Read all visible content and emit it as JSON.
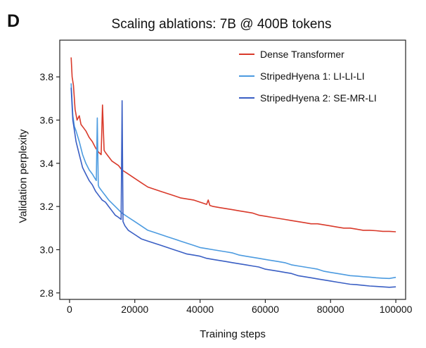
{
  "panel_label": "D",
  "chart_data": {
    "type": "line",
    "title": "Scaling ablations: 7B @ 400B tokens",
    "xlabel": "Training steps",
    "ylabel": "Validation perplexity",
    "xlim": [
      -3000,
      103000
    ],
    "ylim": [
      2.77,
      3.97
    ],
    "xticks": [
      0,
      20000,
      40000,
      60000,
      80000,
      100000
    ],
    "yticks": [
      2.8,
      3.0,
      3.2,
      3.4,
      3.6,
      3.8
    ],
    "xtick_labels": [
      "0",
      "20000",
      "40000",
      "60000",
      "80000",
      "100000"
    ],
    "ytick_labels": [
      "2.8",
      "3.0",
      "3.2",
      "3.4",
      "3.6",
      "3.8"
    ],
    "grid": false,
    "legend_position": "top-right",
    "series": [
      {
        "name": "Dense Transformer",
        "color": "#d93a2b",
        "x": [
          500,
          800,
          1200,
          1700,
          2300,
          3000,
          3500,
          4000,
          5000,
          6000,
          7000,
          8000,
          9000,
          9700,
          10100,
          10600,
          11000,
          12000,
          13000,
          14000,
          15000,
          16000,
          18000,
          20000,
          22000,
          24000,
          26000,
          28000,
          30000,
          32000,
          34000,
          36000,
          38000,
          40000,
          41000,
          42000,
          42500,
          43000,
          44000,
          46000,
          48000,
          50000,
          52000,
          54000,
          56000,
          58000,
          60000,
          62000,
          64000,
          66000,
          68000,
          70000,
          72000,
          74000,
          76000,
          78000,
          80000,
          82000,
          84000,
          86000,
          88000,
          90000,
          92000,
          94000,
          96000,
          98000,
          100000
        ],
        "y": [
          3.89,
          3.8,
          3.76,
          3.65,
          3.6,
          3.62,
          3.58,
          3.57,
          3.55,
          3.52,
          3.5,
          3.47,
          3.45,
          3.44,
          3.67,
          3.46,
          3.45,
          3.43,
          3.41,
          3.4,
          3.39,
          3.37,
          3.35,
          3.33,
          3.31,
          3.29,
          3.28,
          3.27,
          3.26,
          3.25,
          3.24,
          3.235,
          3.23,
          3.22,
          3.215,
          3.21,
          3.23,
          3.205,
          3.2,
          3.195,
          3.19,
          3.185,
          3.18,
          3.175,
          3.17,
          3.16,
          3.155,
          3.15,
          3.145,
          3.14,
          3.135,
          3.13,
          3.125,
          3.12,
          3.12,
          3.115,
          3.11,
          3.105,
          3.1,
          3.1,
          3.095,
          3.09,
          3.09,
          3.088,
          3.085,
          3.085,
          3.083
        ]
      },
      {
        "name": "StripedHyena 1: LI-LI-LI",
        "color": "#4c9be0",
        "x": [
          500,
          1000,
          1500,
          2000,
          3000,
          4000,
          5000,
          6000,
          7000,
          7800,
          8200,
          8500,
          8800,
          9000,
          9500,
          10000,
          11000,
          12000,
          14000,
          16000,
          18000,
          20000,
          22000,
          24000,
          26000,
          28000,
          30000,
          32000,
          34000,
          36000,
          38000,
          40000,
          42000,
          44000,
          46000,
          48000,
          50000,
          52000,
          54000,
          56000,
          58000,
          60000,
          62000,
          64000,
          66000,
          68000,
          70000,
          72000,
          74000,
          76000,
          78000,
          80000,
          82000,
          84000,
          86000,
          88000,
          90000,
          92000,
          94000,
          96000,
          98000,
          100000
        ],
        "y": [
          3.77,
          3.62,
          3.57,
          3.55,
          3.5,
          3.44,
          3.4,
          3.37,
          3.35,
          3.33,
          3.32,
          3.61,
          3.3,
          3.29,
          3.28,
          3.27,
          3.25,
          3.23,
          3.2,
          3.17,
          3.15,
          3.13,
          3.11,
          3.09,
          3.08,
          3.07,
          3.06,
          3.05,
          3.04,
          3.03,
          3.02,
          3.01,
          3.005,
          3.0,
          2.995,
          2.99,
          2.985,
          2.975,
          2.97,
          2.965,
          2.96,
          2.955,
          2.95,
          2.945,
          2.94,
          2.93,
          2.925,
          2.92,
          2.915,
          2.91,
          2.9,
          2.895,
          2.89,
          2.885,
          2.88,
          2.878,
          2.875,
          2.873,
          2.87,
          2.868,
          2.867,
          2.872
        ]
      },
      {
        "name": "StripedHyena 2: SE-MR-LI",
        "color": "#3a5fc4",
        "x": [
          500,
          1000,
          1500,
          2000,
          3000,
          4000,
          5000,
          6000,
          7000,
          8000,
          9000,
          10000,
          11000,
          12000,
          13000,
          14000,
          15000,
          15800,
          16100,
          16400,
          16700,
          17000,
          18000,
          20000,
          22000,
          24000,
          26000,
          28000,
          30000,
          32000,
          34000,
          36000,
          38000,
          40000,
          42000,
          44000,
          46000,
          48000,
          50000,
          52000,
          54000,
          56000,
          58000,
          60000,
          62000,
          64000,
          66000,
          68000,
          70000,
          72000,
          74000,
          76000,
          78000,
          80000,
          82000,
          84000,
          86000,
          88000,
          90000,
          92000,
          94000,
          96000,
          98000,
          100000
        ],
        "y": [
          3.75,
          3.6,
          3.55,
          3.5,
          3.44,
          3.38,
          3.35,
          3.32,
          3.3,
          3.27,
          3.25,
          3.23,
          3.22,
          3.2,
          3.18,
          3.16,
          3.15,
          3.14,
          3.69,
          3.13,
          3.12,
          3.11,
          3.09,
          3.07,
          3.05,
          3.04,
          3.03,
          3.02,
          3.01,
          3.0,
          2.99,
          2.98,
          2.975,
          2.97,
          2.96,
          2.955,
          2.95,
          2.945,
          2.94,
          2.935,
          2.93,
          2.925,
          2.92,
          2.91,
          2.905,
          2.9,
          2.895,
          2.89,
          2.88,
          2.875,
          2.87,
          2.865,
          2.86,
          2.855,
          2.85,
          2.845,
          2.84,
          2.838,
          2.835,
          2.832,
          2.83,
          2.828,
          2.826,
          2.828
        ]
      }
    ]
  }
}
